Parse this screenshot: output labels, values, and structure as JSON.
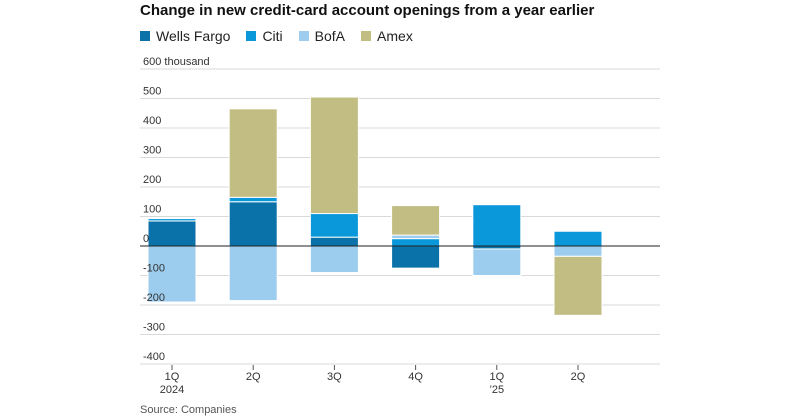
{
  "chart_data": {
    "type": "bar",
    "stacked": true,
    "title": "Change in new credit-card account openings from a year earlier",
    "ylabel": "",
    "y_unit_label": "600 thousand",
    "ylim": [
      -400,
      600
    ],
    "yticks": [
      -400,
      -300,
      -200,
      -100,
      0,
      100,
      200,
      300,
      400,
      500,
      600
    ],
    "ytick_labels": [
      "-400",
      "-300",
      "-200",
      "-100",
      "0",
      "100",
      "200",
      "300",
      "400",
      "500",
      "600 thousand"
    ],
    "grid": "horizontal",
    "legend_position": "top-left",
    "categories": [
      "1Q 2024",
      "2Q",
      "3Q",
      "4Q",
      "1Q ’25",
      "2Q"
    ],
    "category_labels": [
      [
        "1Q",
        "2024"
      ],
      [
        "2Q",
        ""
      ],
      [
        "3Q",
        ""
      ],
      [
        "4Q",
        ""
      ],
      [
        "1Q",
        "’25"
      ],
      [
        "2Q",
        ""
      ]
    ],
    "series": [
      {
        "name": "Wells Fargo",
        "color": "#0a72a8",
        "values": [
          85,
          150,
          30,
          -75,
          -10,
          0
        ]
      },
      {
        "name": "Citi",
        "color": "#0b98db",
        "values": [
          8,
          15,
          80,
          25,
          140,
          50
        ]
      },
      {
        "name": "BofA",
        "color": "#9dcdee",
        "values": [
          -190,
          -185,
          -90,
          12,
          -90,
          -35
        ]
      },
      {
        "name": "Amex",
        "color": "#c2bd82",
        "values": [
          0,
          300,
          395,
          100,
          0,
          -200
        ]
      }
    ]
  },
  "source": "Source: Companies"
}
